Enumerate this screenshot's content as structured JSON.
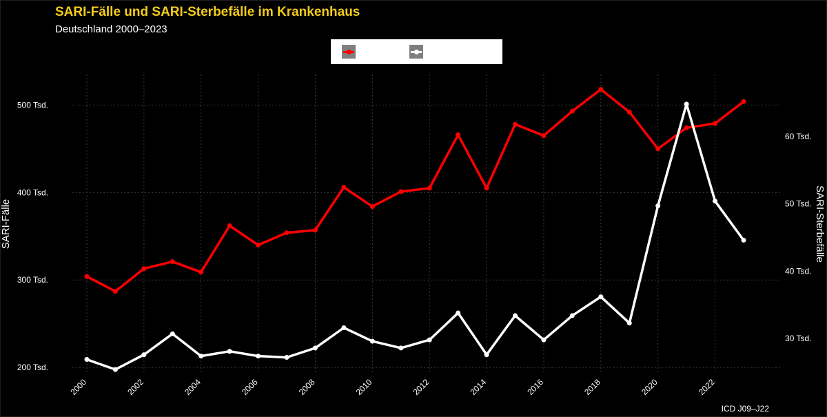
{
  "chart_data": {
    "type": "line",
    "title": "SARI-Fälle und SARI-Sterbefälle im Krankenhaus",
    "subtitle": "Deutschland 2000–2023",
    "caption": "ICD J09–J22",
    "x": [
      2000,
      2001,
      2002,
      2003,
      2004,
      2005,
      2006,
      2007,
      2008,
      2009,
      2010,
      2011,
      2012,
      2013,
      2014,
      2015,
      2016,
      2017,
      2018,
      2019,
      2020,
      2021,
      2022,
      2023
    ],
    "x_ticks": [
      "2000",
      "2002",
      "2004",
      "2006",
      "2008",
      "2010",
      "2012",
      "2014",
      "2016",
      "2018",
      "2020",
      "2022"
    ],
    "y_left": {
      "label": "SARI-Fälle",
      "range": [
        193000,
        535000
      ],
      "ticks": [
        200000,
        300000,
        400000,
        500000
      ],
      "tick_labels": [
        "200 Tsd.",
        "300 Tsd.",
        "400 Tsd.",
        "500 Tsd."
      ]
    },
    "y_right": {
      "label": "SARI-Sterbefälle",
      "range": [
        24800,
        69200
      ],
      "ticks": [
        30000,
        40000,
        50000,
        60000
      ],
      "tick_labels": [
        "30 Tsd.",
        "40 Tsd.",
        "50 Tsd.",
        "60 Tsd."
      ]
    },
    "series": [
      {
        "axis": "left",
        "color": "#ff0000",
        "values": [
          304000,
          287000,
          313000,
          321000,
          309000,
          362000,
          340000,
          354000,
          357000,
          406000,
          384000,
          401000,
          405000,
          466000,
          405000,
          478000,
          465000,
          493000,
          518000,
          492000,
          450000,
          474000,
          479000,
          504000
        ]
      },
      {
        "axis": "right",
        "color": "#ffffff",
        "values": [
          26900,
          25400,
          27600,
          30700,
          27400,
          28100,
          27400,
          27200,
          28600,
          31600,
          29600,
          28600,
          29800,
          33800,
          27600,
          33400,
          29800,
          33400,
          36200,
          32300,
          49700,
          64800,
          50400,
          44600
        ]
      }
    ],
    "grid": true,
    "legend": "top-center",
    "background": "#000000"
  }
}
